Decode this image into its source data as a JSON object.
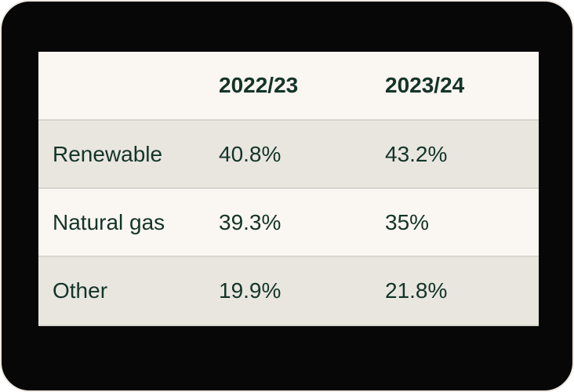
{
  "card": {
    "background": "#070707",
    "border_color": "#ede8e3"
  },
  "table": {
    "header": [
      "",
      "2022/23",
      "2023/24"
    ],
    "rows": [
      {
        "label": "Renewable",
        "values": [
          "40.8%",
          "43.2%"
        ]
      },
      {
        "label": "Natural gas",
        "values": [
          "39.3%",
          "35%"
        ]
      },
      {
        "label": "Other",
        "values": [
          "19.9%",
          "21.8%"
        ]
      }
    ],
    "colors": {
      "header_bg": "#faf6f1",
      "row_light_bg": "#faf6f1",
      "row_shaded_bg": "#e9e6e0",
      "divider": "#d8d4ce",
      "text": "#143429"
    }
  },
  "chart_data": {
    "type": "table",
    "categories": [
      "Renewable",
      "Natural gas",
      "Other"
    ],
    "series": [
      {
        "name": "2022/23",
        "values": [
          40.8,
          39.3,
          19.9
        ]
      },
      {
        "name": "2023/24",
        "values": [
          43.2,
          35,
          21.8
        ]
      }
    ],
    "value_format": "percent"
  }
}
